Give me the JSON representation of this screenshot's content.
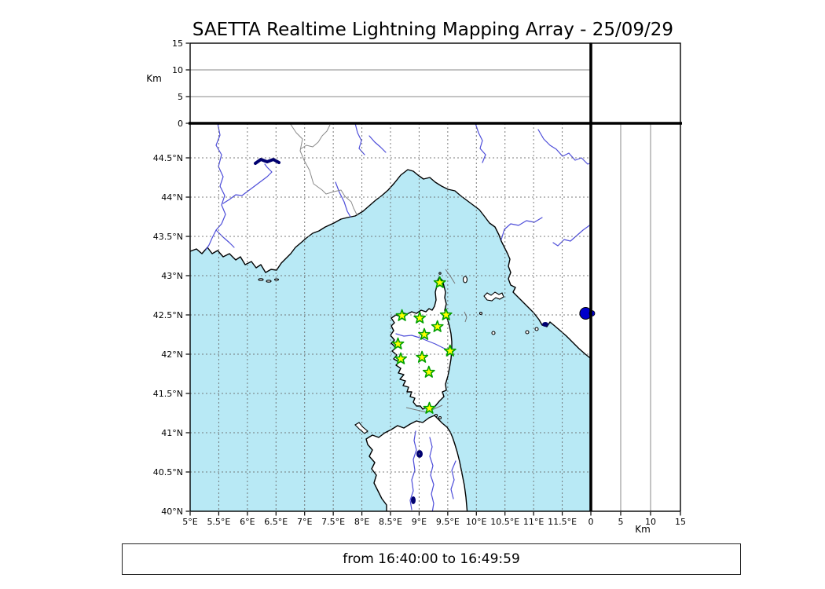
{
  "title": "SAETTA Realtime Lightning Mapping Array - 25/09/29",
  "time_window": "from 16:40:00 to 16:49:59",
  "colors": {
    "sea": "#b8e9f5",
    "land": "#ffffff",
    "coastline": "#000000",
    "river": "#4d4dd9",
    "boundary": "#8a8a8a",
    "grid": "#666666",
    "lake": "#000070",
    "station_fill": "#ffff00",
    "station_edge": "#00a000",
    "event": "#0000cc"
  },
  "map": {
    "lon_min": 5,
    "lon_max": 12,
    "lat_min": 40,
    "lat_max": 44.94,
    "lon_ticks": [
      {
        "v": 5,
        "label": "5°E"
      },
      {
        "v": 5.5,
        "label": "5.5°E"
      },
      {
        "v": 6,
        "label": "6°E"
      },
      {
        "v": 6.5,
        "label": "6.5°E"
      },
      {
        "v": 7,
        "label": "7°E"
      },
      {
        "v": 7.5,
        "label": "7.5°E"
      },
      {
        "v": 8,
        "label": "8°E"
      },
      {
        "v": 8.5,
        "label": "8.5°E"
      },
      {
        "v": 9,
        "label": "9°E"
      },
      {
        "v": 9.5,
        "label": "9.5°E"
      },
      {
        "v": 10,
        "label": "10°E"
      },
      {
        "v": 10.5,
        "label": "10.5°E"
      },
      {
        "v": 11,
        "label": "11°E"
      },
      {
        "v": 11.5,
        "label": "11.5°E"
      }
    ],
    "lat_ticks": [
      {
        "v": 44.5,
        "label": "44.5°N"
      },
      {
        "v": 44,
        "label": "44°N"
      },
      {
        "v": 43.5,
        "label": "43.5°N"
      },
      {
        "v": 43,
        "label": "43°N"
      },
      {
        "v": 42.5,
        "label": "42.5°N"
      },
      {
        "v": 42,
        "label": "42°N"
      },
      {
        "v": 41.5,
        "label": "41.5°N"
      },
      {
        "v": 41,
        "label": "41°N"
      },
      {
        "v": 40.5,
        "label": "40.5°N"
      },
      {
        "v": 40,
        "label": "40°N"
      }
    ],
    "stations": [
      {
        "lon": 9.36,
        "lat": 42.91
      },
      {
        "lon": 8.7,
        "lat": 42.49
      },
      {
        "lon": 9.01,
        "lat": 42.46
      },
      {
        "lon": 9.47,
        "lat": 42.5
      },
      {
        "lon": 9.32,
        "lat": 42.35
      },
      {
        "lon": 9.09,
        "lat": 42.25
      },
      {
        "lon": 8.63,
        "lat": 42.13
      },
      {
        "lon": 9.54,
        "lat": 42.04
      },
      {
        "lon": 8.68,
        "lat": 41.94
      },
      {
        "lon": 9.05,
        "lat": 41.96
      },
      {
        "lon": 9.17,
        "lat": 41.77
      },
      {
        "lon": 9.18,
        "lat": 41.31
      }
    ],
    "event": {
      "lon": 11.91,
      "lat": 42.52,
      "altitude_km": 0
    }
  },
  "altitude_axis": {
    "unit_label": "Km",
    "max": 15,
    "ticks": [
      {
        "v": 0,
        "label": "0"
      },
      {
        "v": 5,
        "label": "5"
      },
      {
        "v": 10,
        "label": "10"
      },
      {
        "v": 15,
        "label": "15"
      }
    ],
    "grid_values": [
      5,
      10
    ]
  }
}
